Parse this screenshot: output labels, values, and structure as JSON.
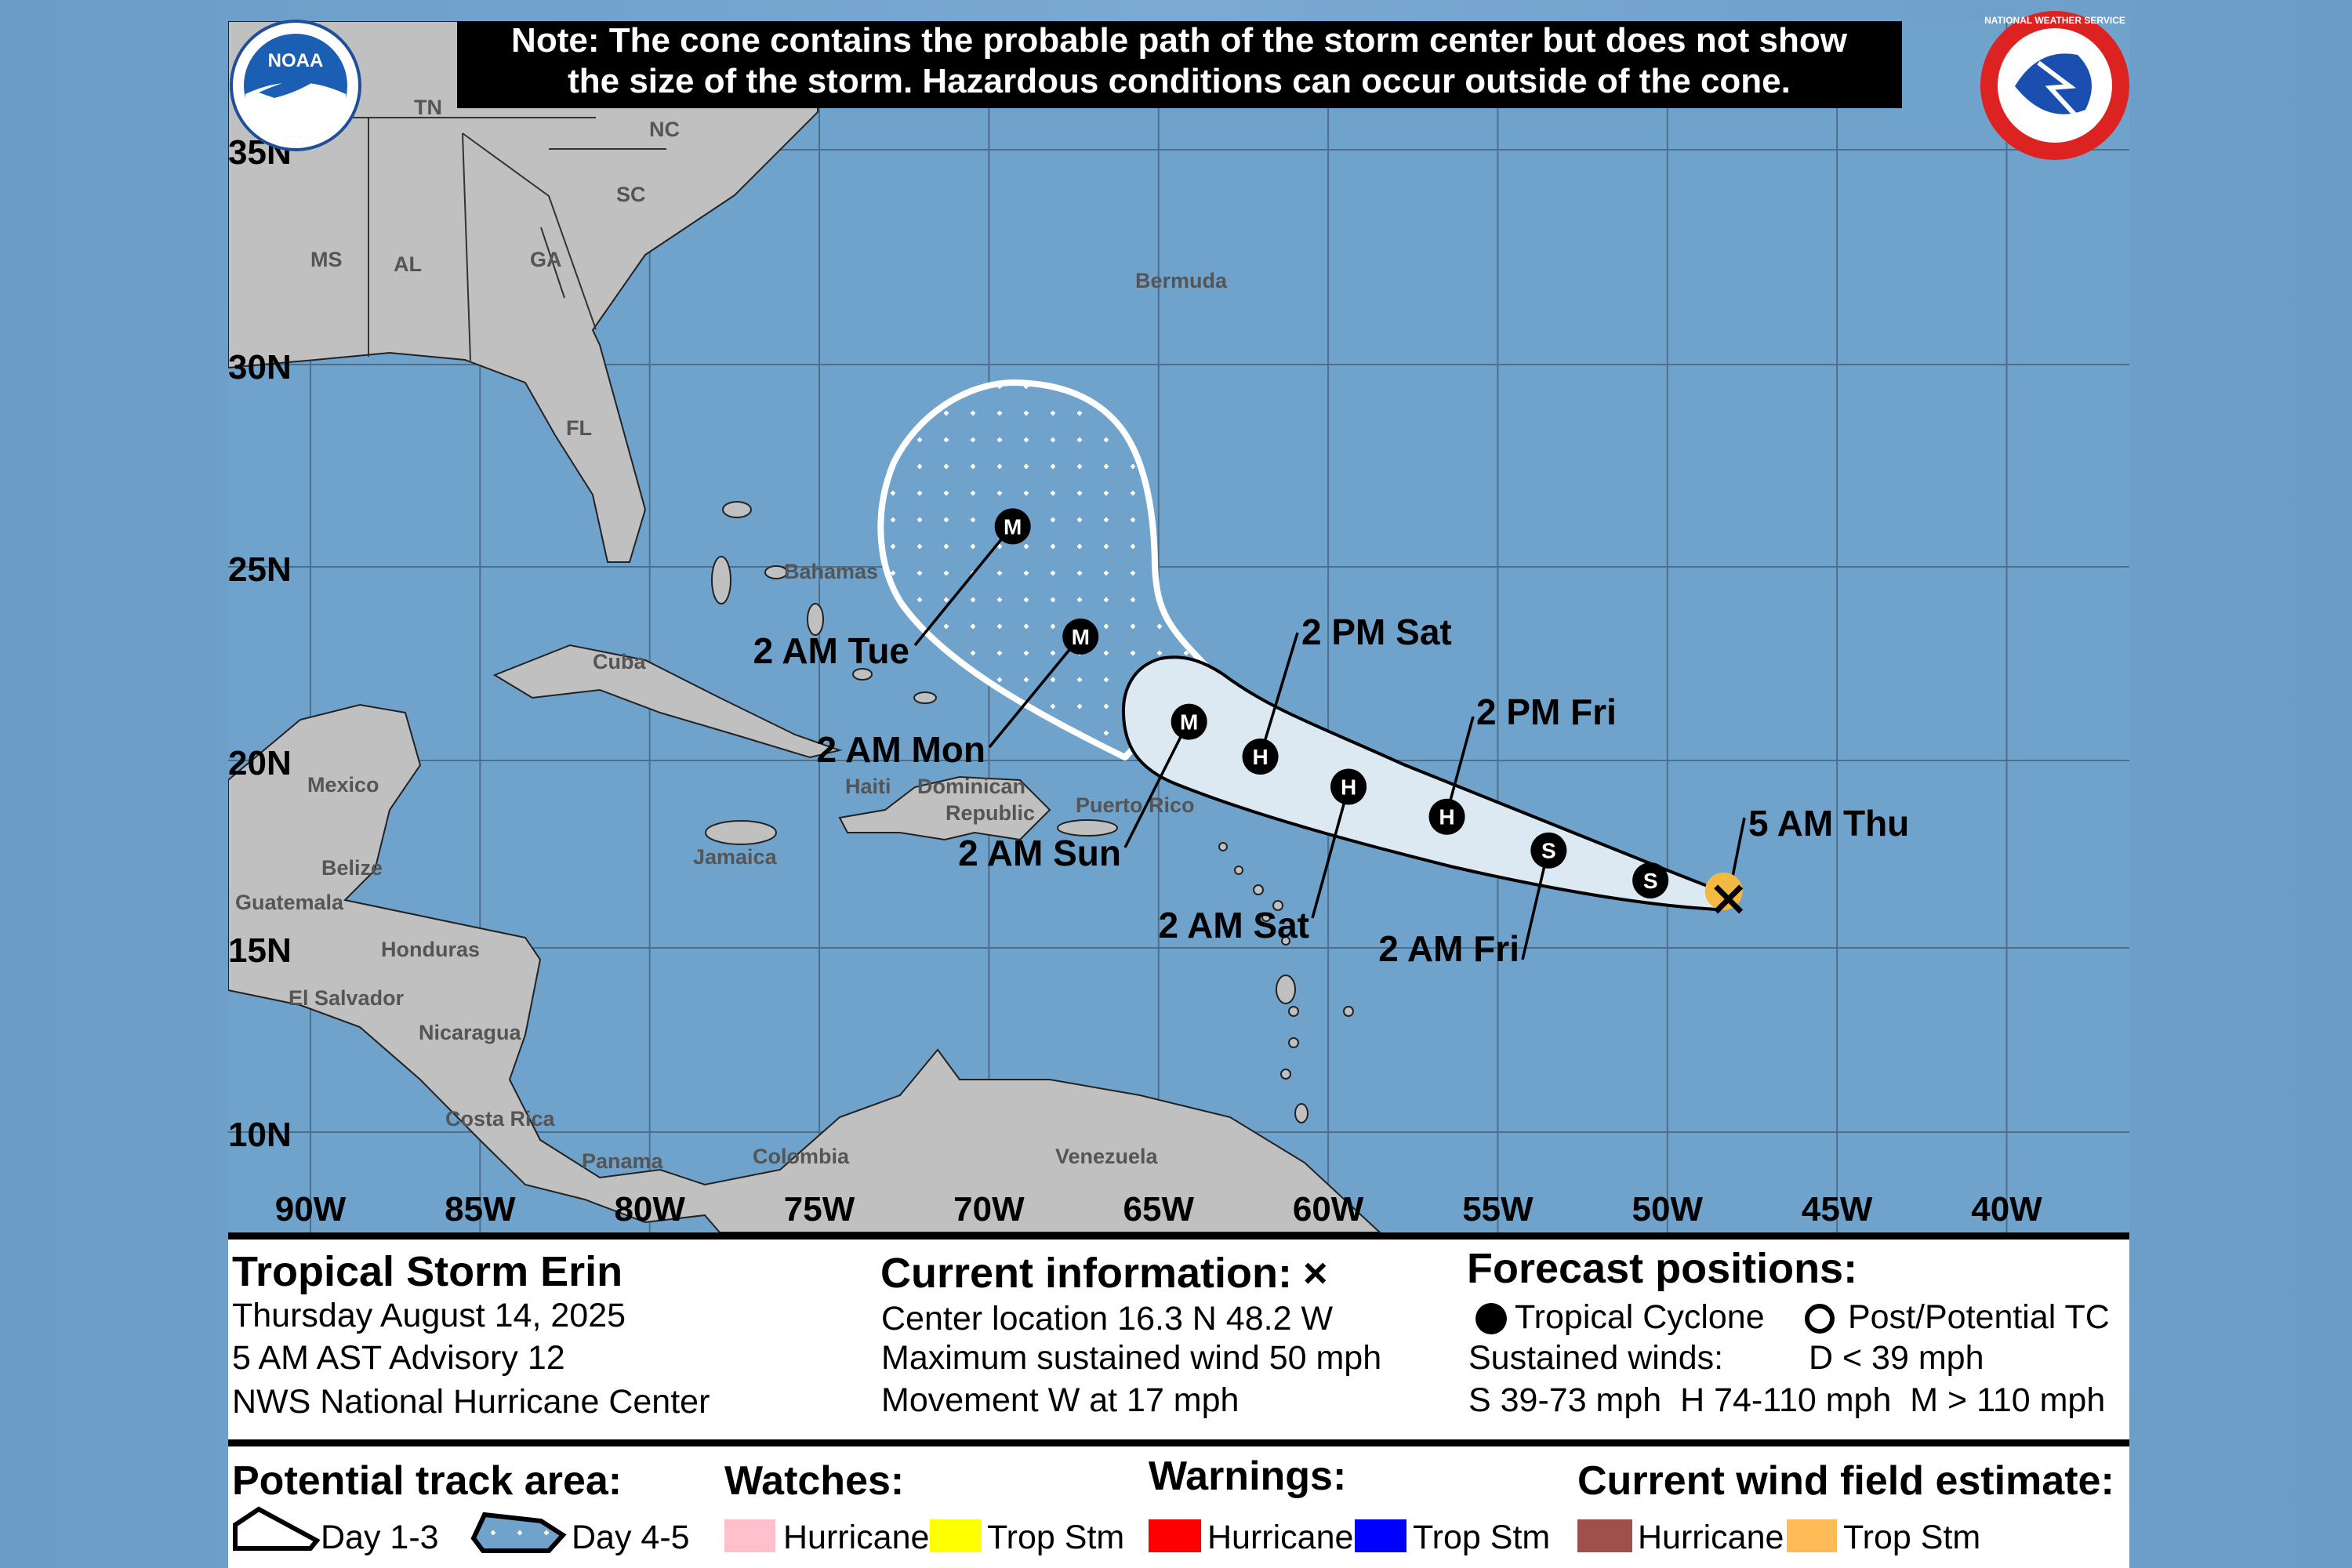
{
  "note": {
    "line1": "Note: The cone contains the probable path of the storm center but does not show",
    "line2": "the size of the storm. Hazardous conditions can occur outside of the cone."
  },
  "logos": {
    "left": "NOAA",
    "right": "NATIONAL WEATHER SERVICE"
  },
  "colors": {
    "ocean": "#6fa3cc",
    "land": "#c0c0c0",
    "cone_day_1_3": "#dce8f2",
    "wind_trop_stm": "#f4b942",
    "watch_hurricane": "#ffc0cb",
    "watch_trop_stm": "#ffff00",
    "warning_hurricane": "#ff0000",
    "warning_trop_stm": "#0000ff",
    "wind_hurricane": "#a0504a",
    "wind_trop_stm_legend": "#ffbb55"
  },
  "axes": {
    "lat_labels": [
      "35N",
      "30N",
      "25N",
      "20N",
      "15N",
      "10N"
    ],
    "lon_labels": [
      "90W",
      "85W",
      "80W",
      "75W",
      "70W",
      "65W",
      "60W",
      "55W",
      "50W",
      "45W",
      "40W"
    ]
  },
  "places": {
    "tn": "TN",
    "nc": "NC",
    "sc": "SC",
    "ms": "MS",
    "al": "AL",
    "ga": "GA",
    "fl": "FL",
    "bermuda": "Bermuda",
    "bahamas": "Bahamas",
    "cuba": "Cuba",
    "mexico": "Mexico",
    "belize": "Belize",
    "guatemala": "Guatemala",
    "honduras": "Honduras",
    "el_salvador": "El Salvador",
    "nicaragua": "Nicaragua",
    "costa_rica": "Costa Rica",
    "panama": "Panama",
    "colombia": "Colombia",
    "venezuela": "Venezuela",
    "jamaica": "Jamaica",
    "haiti": "Haiti",
    "dominican": "Dominican",
    "republic": "Republic",
    "puerto_rico": "Puerto Rico"
  },
  "storm": {
    "current": {
      "label": "5 AM Thu",
      "lat": 16.3,
      "lon_w": 48.2
    },
    "forecast_positions": [
      {
        "label": "",
        "type": "S",
        "lat": 16.8,
        "lon_w": 50.5
      },
      {
        "label": "2 AM Fri",
        "type": "S",
        "lat": 17.6,
        "lon_w": 53.5
      },
      {
        "label": "2 PM Fri",
        "type": "H",
        "lat": 18.5,
        "lon_w": 56.5
      },
      {
        "label": "2 AM Sat",
        "type": "H",
        "lat": 19.3,
        "lon_w": 59.4
      },
      {
        "label": "2 PM Sat",
        "type": "H",
        "lat": 20.1,
        "lon_w": 62.0
      },
      {
        "label": "2 AM Sun",
        "type": "M",
        "lat": 21.0,
        "lon_w": 64.1
      },
      {
        "label": "2 AM Mon",
        "type": "M",
        "lat": 23.2,
        "lon_w": 67.3
      },
      {
        "label": "2 AM Tue",
        "type": "M",
        "lat": 26.0,
        "lon_w": 69.3
      }
    ]
  },
  "info": {
    "title": "Tropical Storm Erin",
    "date": "Thursday August 14, 2025",
    "advisory": "5 AM AST Advisory 12",
    "center": "NWS National Hurricane Center",
    "current_heading": "Current information:",
    "current_symbol": "×",
    "location": "Center location 16.3 N 48.2 W",
    "wind": "Maximum sustained wind 50 mph",
    "movement": "Movement W at 17 mph",
    "forecast_heading": "Forecast positions:",
    "tc_label": "Tropical Cyclone",
    "post_label": "Post/Potential TC",
    "sustained": "Sustained winds:",
    "d_range": "D < 39 mph",
    "shm_ranges": "S 39-73 mph  H 74-110 mph  M > 110 mph"
  },
  "legend": {
    "track_heading": "Potential track area:",
    "day13": "Day 1-3",
    "day45": "Day 4-5",
    "watches_heading": "Watches:",
    "warnings_heading": "Warnings:",
    "wind_heading": "Current wind field estimate:",
    "hurricane": "Hurricane",
    "trop_stm": "Trop Stm"
  }
}
